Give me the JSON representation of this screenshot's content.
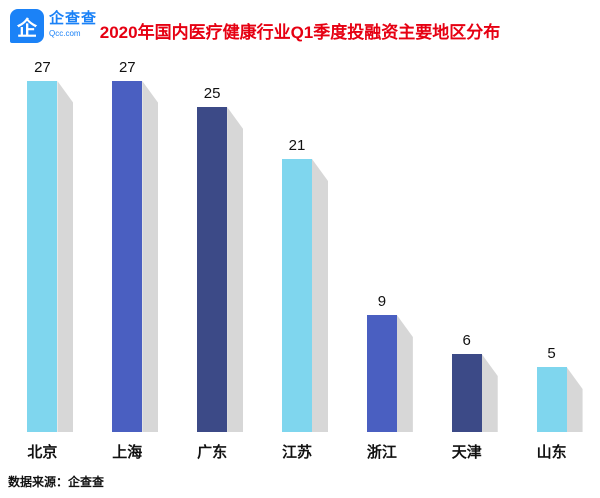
{
  "header": {
    "logo": {
      "icon_text": "企",
      "name": "企查查",
      "domain": "Qcc.com"
    },
    "title": "2020年国内医疗健康行业Q1季度投融资主要地区分布"
  },
  "chart_data": {
    "type": "bar",
    "title": "2020年国内医疗健康行业Q1季度投融资主要地区分布",
    "categories": [
      "北京",
      "上海",
      "广东",
      "江苏",
      "浙江",
      "天津",
      "山东"
    ],
    "values": [
      27,
      27,
      25,
      21,
      9,
      6,
      5
    ],
    "xlabel": "",
    "ylabel": "",
    "ylim": [
      0,
      27
    ],
    "grid": false,
    "legend": "none",
    "bar_colors": [
      "#7fd6ee",
      "#4a5fc1",
      "#3c4a87",
      "#7fd6ee",
      "#4a5fc1",
      "#3c4a87",
      "#7fd6ee"
    ],
    "shadow_color": "#d7d7d7",
    "value_labels_shown": true
  },
  "footer": {
    "source": "数据来源：企查查"
  },
  "colors": {
    "title_red": "#e60012",
    "logo_blue": "#1b82f7",
    "text": "#111111"
  }
}
